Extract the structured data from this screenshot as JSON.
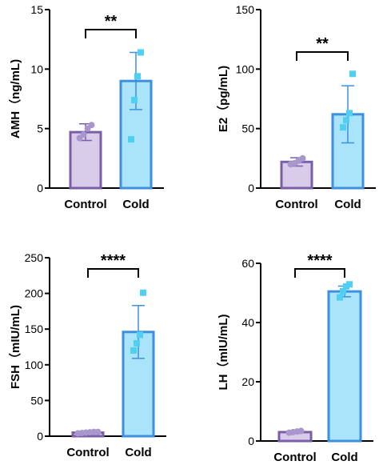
{
  "colors": {
    "control_fill": "#d9cbea",
    "control_edge": "#7a5fa8",
    "control_point": "#a896cc",
    "cold_fill": "#a9e4fb",
    "cold_edge": "#3d8fe0",
    "cold_point": "#4fd0f2",
    "axis": "#000000"
  },
  "chart_data": [
    {
      "type": "bar",
      "ylabel": "AMH（ng/mL)",
      "categories": [
        "Control",
        "Cold"
      ],
      "ylim": [
        0,
        15
      ],
      "yticks": [
        0,
        5,
        10,
        15
      ],
      "values": [
        4.7,
        9.0
      ],
      "sd": [
        0.7,
        2.4
      ],
      "points": [
        [
          4.2,
          4.5,
          5.0,
          5.3
        ],
        [
          4.1,
          7.4,
          9.4,
          11.4
        ]
      ],
      "significance": "**"
    },
    {
      "type": "bar",
      "ylabel": "E2（pg/mL)",
      "categories": [
        "Control",
        "Cold"
      ],
      "ylim": [
        0,
        150
      ],
      "yticks": [
        0,
        50,
        100,
        150
      ],
      "values": [
        22,
        62
      ],
      "sd": [
        3.5,
        24
      ],
      "points": [
        [
          20,
          21,
          23,
          25
        ],
        [
          51,
          57,
          63,
          96
        ]
      ],
      "significance": "**"
    },
    {
      "type": "bar",
      "ylabel": "FSH（mIU/mL)",
      "categories": [
        "Control",
        "Cold"
      ],
      "ylim": [
        0,
        250
      ],
      "yticks": [
        0,
        50,
        100,
        150,
        200,
        250
      ],
      "values": [
        5,
        146
      ],
      "sd": [
        1,
        37
      ],
      "points": [
        [
          4,
          4.5,
          5,
          5.5,
          6,
          6
        ],
        [
          120,
          130,
          142,
          201
        ]
      ],
      "significance": "****"
    },
    {
      "type": "bar",
      "ylabel": "LH（mIU/mL)",
      "categories": [
        "Control",
        "Cold"
      ],
      "ylim": [
        0,
        60
      ],
      "yticks": [
        0,
        20,
        40,
        60
      ],
      "values": [
        3,
        50.5
      ],
      "sd": [
        0.4,
        1.8
      ],
      "points": [
        [
          2.8,
          3.0,
          3.2,
          3.4
        ],
        [
          48.5,
          50.6,
          52.2,
          52.9
        ]
      ],
      "significance": "****"
    }
  ]
}
